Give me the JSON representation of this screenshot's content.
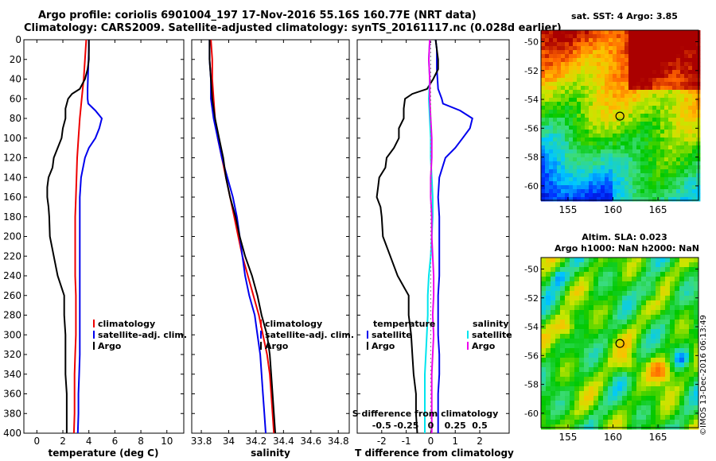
{
  "titles": {
    "line1": "Argo profile: coriolis 6901004_197 17-Nov-2016 55.16S 160.77E (NRT data)",
    "line2": "Climatology: CARS2009. Satellite-adjusted climatology: synTS_20161117.nc (0.028d earlier)"
  },
  "stamp": "©IMOS 13-Dec-2016 06:13:49",
  "colors": {
    "climatology": "#ee0000",
    "satellite": "#0000ee",
    "argo": "#000000",
    "s_satellite": "#00e5ee",
    "s_argo": "#ee00ee"
  },
  "depth_axis": {
    "ticks": [
      "0",
      "20",
      "40",
      "60",
      "80",
      "100",
      "120",
      "140",
      "160",
      "180",
      "200",
      "220",
      "240",
      "260",
      "280",
      "300",
      "320",
      "340",
      "360",
      "380",
      "400"
    ],
    "range": [
      0,
      400
    ]
  },
  "chart_data": [
    {
      "id": "temperature",
      "type": "line",
      "xlabel": "temperature (deg C)",
      "ylabel": "depth",
      "xlim": [
        -1,
        11.3
      ],
      "ylim": [
        400,
        0
      ],
      "xticks": [
        "0",
        "2",
        "4",
        "6",
        "8",
        "10"
      ],
      "xtick_values": [
        0,
        2,
        4,
        6,
        8,
        10
      ],
      "legend": [
        "climatology",
        "satellite-adj. clim.",
        "Argo"
      ],
      "legend_position": "lower-right",
      "series": [
        {
          "name": "climatology",
          "color": "#ee0000",
          "depth": [
            0,
            10,
            20,
            40,
            60,
            80,
            100,
            120,
            140,
            160,
            180,
            200,
            220,
            240,
            260,
            280,
            300,
            320,
            340,
            360,
            380,
            400
          ],
          "values": [
            3.8,
            3.75,
            3.7,
            3.6,
            3.45,
            3.3,
            3.2,
            3.1,
            3.05,
            3.0,
            2.95,
            2.95,
            2.95,
            2.95,
            3.0,
            3.0,
            3.0,
            2.95,
            2.9,
            2.9,
            2.9,
            2.85
          ]
        },
        {
          "name": "satellite-adj. clim.",
          "color": "#0000ee",
          "depth": [
            0,
            10,
            30,
            50,
            60,
            65,
            72,
            80,
            90,
            100,
            110,
            120,
            140,
            160,
            180,
            200,
            220,
            240,
            260,
            280,
            300,
            320,
            340,
            360,
            380,
            400
          ],
          "values": [
            4.0,
            4.0,
            3.95,
            3.9,
            3.9,
            3.95,
            4.5,
            5.0,
            4.8,
            4.5,
            4.0,
            3.7,
            3.4,
            3.3,
            3.3,
            3.3,
            3.3,
            3.3,
            3.3,
            3.3,
            3.3,
            3.3,
            3.25,
            3.2,
            3.2,
            3.15
          ]
        },
        {
          "name": "Argo",
          "color": "#000000",
          "depth": [
            0,
            10,
            20,
            30,
            40,
            50,
            55,
            60,
            70,
            80,
            90,
            100,
            110,
            120,
            130,
            140,
            150,
            160,
            170,
            180,
            200,
            220,
            240,
            260,
            280,
            300,
            320,
            340,
            360,
            380,
            400
          ],
          "values": [
            4.0,
            4.0,
            4.0,
            3.9,
            3.7,
            3.3,
            2.7,
            2.4,
            2.2,
            2.2,
            2.0,
            1.9,
            1.6,
            1.3,
            1.2,
            0.9,
            0.8,
            0.8,
            0.9,
            0.95,
            1.0,
            1.3,
            1.6,
            2.1,
            2.1,
            2.2,
            2.2,
            2.2,
            2.3,
            2.3,
            2.3
          ]
        }
      ]
    },
    {
      "id": "salinity",
      "type": "line",
      "xlabel": "salinity",
      "ylabel": "depth",
      "xlim": [
        33.73,
        34.88
      ],
      "ylim": [
        400,
        0
      ],
      "xticks": [
        "33.8",
        "34",
        "34.2",
        "34.4",
        "34.6",
        "34.8"
      ],
      "xtick_values": [
        33.8,
        34.0,
        34.2,
        34.4,
        34.6,
        34.8
      ],
      "legend": [
        "climatology",
        "satellite-adj. clim.",
        "Argo"
      ],
      "legend_position": "lower-right",
      "series": [
        {
          "name": "climatology",
          "color": "#ee0000",
          "depth": [
            0,
            20,
            40,
            60,
            80,
            100,
            120,
            140,
            160,
            180,
            200,
            220,
            240,
            260,
            280,
            300,
            320,
            340,
            360,
            380,
            400
          ],
          "values": [
            33.87,
            33.88,
            33.88,
            33.89,
            33.9,
            33.92,
            33.95,
            33.98,
            34.01,
            34.04,
            34.07,
            34.1,
            34.14,
            34.18,
            34.22,
            34.25,
            34.28,
            34.3,
            34.31,
            34.32,
            34.33
          ]
        },
        {
          "name": "satellite-adj. clim.",
          "color": "#0000ee",
          "depth": [
            0,
            20,
            40,
            60,
            80,
            100,
            120,
            140,
            160,
            180,
            200,
            220,
            240,
            260,
            280,
            300,
            320,
            340,
            360,
            380,
            400
          ],
          "values": [
            33.86,
            33.86,
            33.87,
            33.87,
            33.89,
            33.92,
            33.95,
            33.99,
            34.03,
            34.06,
            34.08,
            34.1,
            34.12,
            34.15,
            34.19,
            34.21,
            34.23,
            34.24,
            34.25,
            34.26,
            34.27
          ]
        },
        {
          "name": "Argo",
          "color": "#000000",
          "depth": [
            0,
            20,
            40,
            60,
            80,
            100,
            120,
            140,
            160,
            180,
            200,
            220,
            240,
            260,
            280,
            300,
            320,
            340,
            360,
            380,
            400
          ],
          "values": [
            33.86,
            33.86,
            33.87,
            33.88,
            33.9,
            33.93,
            33.96,
            33.98,
            34.01,
            34.05,
            34.08,
            34.12,
            34.17,
            34.21,
            34.24,
            34.28,
            34.3,
            34.31,
            34.32,
            34.33,
            34.34
          ]
        }
      ]
    },
    {
      "id": "difference",
      "type": "line",
      "xlabel": "T difference from climatology",
      "xlabel2": "S difference from climatology",
      "ylabel": "depth",
      "xlim": [
        -3,
        3.2
      ],
      "ylim": [
        400,
        0
      ],
      "xticks": [
        "-2",
        "-1",
        "0",
        "1",
        "2"
      ],
      "xtick_values": [
        -2,
        -1,
        0,
        1,
        2
      ],
      "sxticks": [
        "-0.5",
        "-0.25",
        "0",
        "0.25",
        "0.5"
      ],
      "sxtick_values": [
        -0.5,
        -0.25,
        0,
        0.25,
        0.5
      ],
      "s_scale": 4,
      "legend_t_header": "temperature",
      "legend_t": [
        "satellite",
        "Argo"
      ],
      "legend_s_header": "salinity",
      "legend_s": [
        "satellite",
        "Argo"
      ],
      "series": [
        {
          "name": "T satellite",
          "color": "#0000ee",
          "depth": [
            0,
            10,
            30,
            50,
            60,
            65,
            72,
            80,
            90,
            100,
            110,
            120,
            140,
            160,
            180,
            200,
            220,
            240,
            260,
            280,
            300,
            320,
            340,
            360,
            380,
            400
          ],
          "values": [
            0.2,
            0.25,
            0.25,
            0.3,
            0.45,
            0.5,
            1.2,
            1.7,
            1.6,
            1.3,
            1.0,
            0.6,
            0.35,
            0.3,
            0.35,
            0.35,
            0.35,
            0.35,
            0.3,
            0.3,
            0.3,
            0.35,
            0.35,
            0.3,
            0.3,
            0.3
          ]
        },
        {
          "name": "T Argo",
          "color": "#000000",
          "depth": [
            0,
            10,
            20,
            30,
            40,
            50,
            55,
            60,
            70,
            80,
            90,
            100,
            110,
            120,
            130,
            140,
            150,
            160,
            170,
            180,
            200,
            220,
            240,
            260,
            280,
            300,
            320,
            340,
            360,
            380,
            400
          ],
          "values": [
            0.2,
            0.25,
            0.3,
            0.3,
            0.1,
            -0.15,
            -0.75,
            -1.05,
            -1.1,
            -1.1,
            -1.3,
            -1.3,
            -1.5,
            -1.8,
            -1.85,
            -2.1,
            -2.15,
            -2.2,
            -2.05,
            -2.0,
            -1.95,
            -1.65,
            -1.35,
            -0.9,
            -0.9,
            -0.8,
            -0.75,
            -0.7,
            -0.6,
            -0.6,
            -0.55
          ]
        },
        {
          "name": "S satellite",
          "color": "#00e5ee",
          "depth": [
            0,
            20,
            40,
            60,
            80,
            100,
            120,
            140,
            160,
            180,
            200,
            220,
            240,
            260,
            280,
            300,
            320,
            340,
            360,
            380,
            400
          ],
          "values": [
            -0.01,
            -0.02,
            -0.01,
            -0.02,
            -0.01,
            0.0,
            0.0,
            0.01,
            0.02,
            0.02,
            0.01,
            0.0,
            -0.02,
            -0.03,
            -0.03,
            -0.04,
            -0.05,
            -0.06,
            -0.06,
            -0.06,
            -0.06
          ]
        },
        {
          "name": "S Argo",
          "color": "#ee00ee",
          "depth": [
            0,
            20,
            40,
            60,
            80,
            100,
            120,
            140,
            160,
            180,
            200,
            220,
            240,
            260,
            280,
            300,
            320,
            340,
            360,
            380,
            400
          ],
          "values": [
            -0.01,
            -0.02,
            -0.01,
            -0.01,
            0.0,
            0.01,
            0.01,
            0.0,
            0.0,
            0.01,
            0.01,
            0.02,
            0.03,
            0.03,
            0.02,
            0.03,
            0.02,
            0.01,
            0.01,
            0.01,
            0.01
          ]
        }
      ]
    }
  ],
  "maps": [
    {
      "id": "sst-map",
      "title1": "sat. SST: 4 Argo: 3.85",
      "title2": "",
      "xticks": [
        "155",
        "160",
        "165"
      ],
      "xtick_values": [
        155,
        160,
        165
      ],
      "yticks": [
        "-50",
        "-52",
        "-54",
        "-56",
        "-58",
        "-60"
      ],
      "ytick_values": [
        -50,
        -52,
        -54,
        -56,
        -58,
        -60
      ],
      "lon_range": [
        152,
        169.5
      ],
      "lat_range": [
        -61,
        -49.2
      ],
      "argo_lon": 160.77,
      "argo_lat": -55.16
    },
    {
      "id": "sla-map",
      "title1": "Altim. SLA: 0.023",
      "title2": "Argo h1000: NaN h2000: NaN",
      "xticks": [
        "155",
        "160",
        "165"
      ],
      "xtick_values": [
        155,
        160,
        165
      ],
      "yticks": [
        "-50",
        "-52",
        "-54",
        "-56",
        "-58",
        "-60"
      ],
      "ytick_values": [
        -50,
        -52,
        -54,
        -56,
        -58,
        -60
      ],
      "lon_range": [
        152,
        169.5
      ],
      "lat_range": [
        -61,
        -49.2
      ],
      "argo_lon": 160.77,
      "argo_lat": -55.16
    }
  ]
}
